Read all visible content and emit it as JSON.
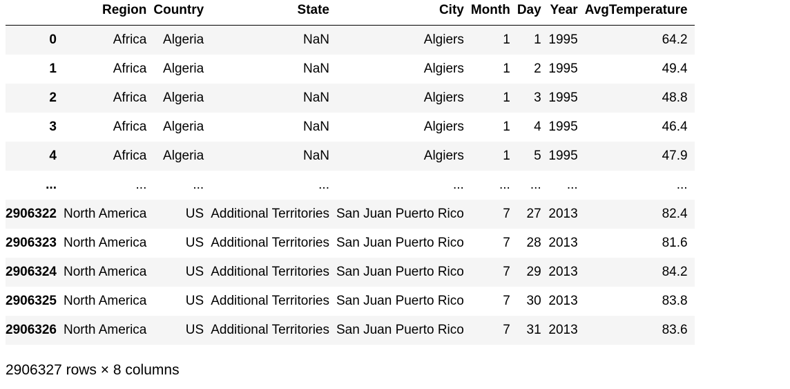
{
  "columns": [
    "",
    "Region",
    "Country",
    "State",
    "City",
    "Month",
    "Day",
    "Year",
    "AvgTemperature"
  ],
  "rows": [
    [
      "0",
      "Africa",
      "Algeria",
      "NaN",
      "Algiers",
      "1",
      "1",
      "1995",
      "64.2"
    ],
    [
      "1",
      "Africa",
      "Algeria",
      "NaN",
      "Algiers",
      "1",
      "2",
      "1995",
      "49.4"
    ],
    [
      "2",
      "Africa",
      "Algeria",
      "NaN",
      "Algiers",
      "1",
      "3",
      "1995",
      "48.8"
    ],
    [
      "3",
      "Africa",
      "Algeria",
      "NaN",
      "Algiers",
      "1",
      "4",
      "1995",
      "46.4"
    ],
    [
      "4",
      "Africa",
      "Algeria",
      "NaN",
      "Algiers",
      "1",
      "5",
      "1995",
      "47.9"
    ],
    [
      "...",
      "...",
      "...",
      "...",
      "...",
      "...",
      "...",
      "...",
      "..."
    ],
    [
      "2906322",
      "North America",
      "US",
      "Additional Territories",
      "San Juan Puerto Rico",
      "7",
      "27",
      "2013",
      "82.4"
    ],
    [
      "2906323",
      "North America",
      "US",
      "Additional Territories",
      "San Juan Puerto Rico",
      "7",
      "28",
      "2013",
      "81.6"
    ],
    [
      "2906324",
      "North America",
      "US",
      "Additional Territories",
      "San Juan Puerto Rico",
      "7",
      "29",
      "2013",
      "84.2"
    ],
    [
      "2906325",
      "North America",
      "US",
      "Additional Territories",
      "San Juan Puerto Rico",
      "7",
      "30",
      "2013",
      "83.8"
    ],
    [
      "2906326",
      "North America",
      "US",
      "Additional Territories",
      "San Juan Puerto Rico",
      "7",
      "31",
      "2013",
      "83.6"
    ]
  ],
  "shape_text": "2906327 rows × 8 columns",
  "colors": {
    "stripe": "#f5f5f5",
    "header_rule": "#000000",
    "text": "#000000"
  }
}
